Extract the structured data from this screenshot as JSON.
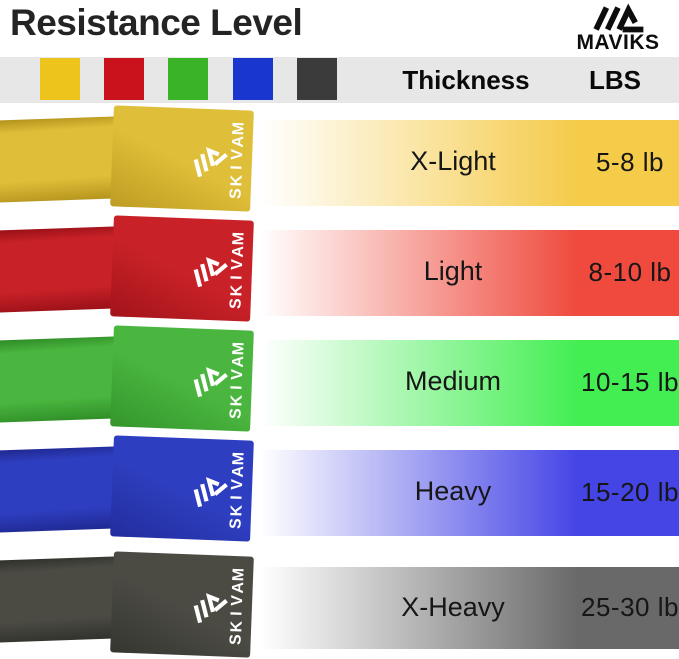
{
  "header": {
    "title": "Resistance Level"
  },
  "brand": {
    "name": "MAVIKS",
    "mark_icon": "maviks-mountain-mark"
  },
  "legend": {
    "bg": "#E7E7E7",
    "swatches": [
      {
        "name": "yellow",
        "color": "#EDC41B"
      },
      {
        "name": "red",
        "color": "#C9121B"
      },
      {
        "name": "green",
        "color": "#3AB327"
      },
      {
        "name": "blue",
        "color": "#1936CF"
      },
      {
        "name": "dark-gray",
        "color": "#3B3B3B"
      }
    ],
    "columns": {
      "thickness": "Thickness",
      "lbs": "LBS"
    }
  },
  "rows": [
    {
      "level": "X-Light",
      "lbs": "5-8 lb",
      "colors": {
        "base": "#DFBE39",
        "dark": "#B3921C",
        "bright": "#F5CB4A"
      }
    },
    {
      "level": "Light",
      "lbs": "8-10 lb",
      "colors": {
        "base": "#C92128",
        "dark": "#971016",
        "bright": "#EF4A3D"
      }
    },
    {
      "level": "Medium",
      "lbs": "10-15 lb",
      "colors": {
        "base": "#4AB63F",
        "dark": "#2E8C26",
        "bright": "#43EE52"
      }
    },
    {
      "level": "Heavy",
      "lbs": "15-20 lb",
      "colors": {
        "base": "#2E3EC0",
        "dark": "#1F2890",
        "bright": "#4545E6"
      }
    },
    {
      "level": "X-Heavy",
      "lbs": "25-30 lb",
      "colors": {
        "base": "#4B4B44",
        "dark": "#30302B",
        "bright": "#696969"
      }
    }
  ]
}
